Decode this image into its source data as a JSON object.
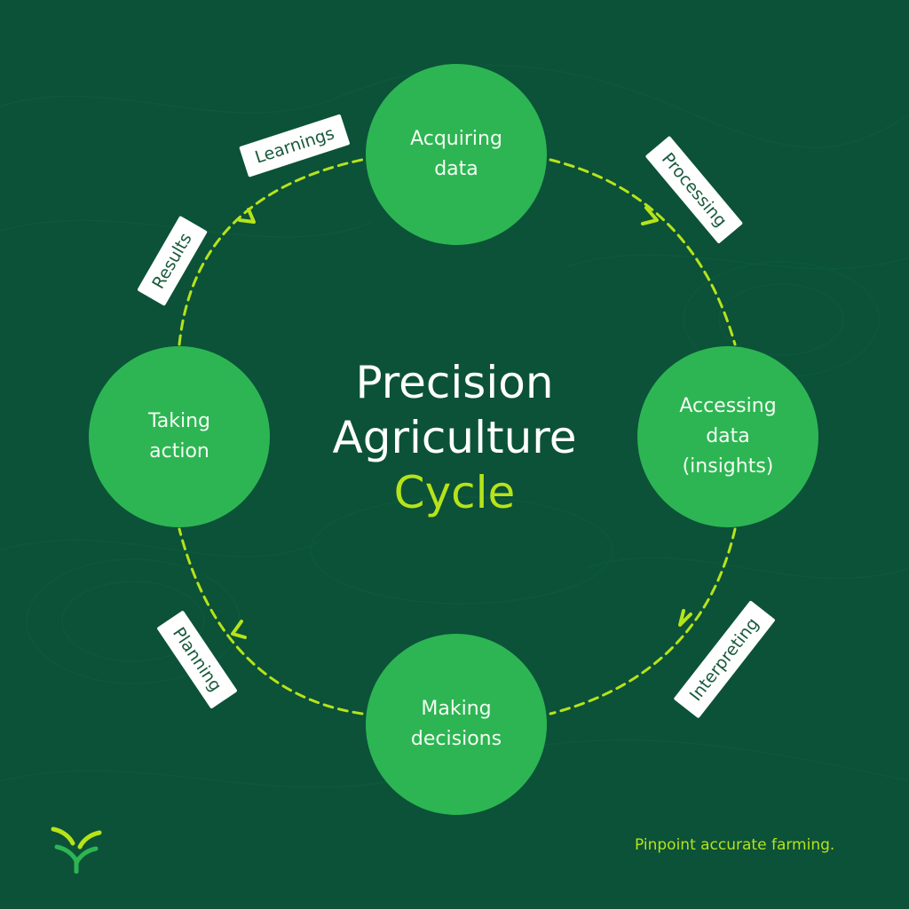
{
  "title": {
    "line1": "Precision",
    "line2": "Agriculture",
    "line3": "Cycle"
  },
  "nodes": {
    "acquiring": {
      "line1": "Acquiring",
      "line2": "data"
    },
    "accessing": {
      "line1": "Accessing",
      "line2": "data",
      "line3": "(insights)"
    },
    "making": {
      "line1": "Making",
      "line2": "decisions"
    },
    "taking": {
      "line1": "Taking",
      "line2": "action"
    }
  },
  "steps": {
    "processing": "Processing",
    "interpreting": "Interpreting",
    "planning": "Planning",
    "results": "Results",
    "learnings": "Learnings"
  },
  "tagline": "Pinpoint accurate farming.",
  "colors": {
    "background": "#0b5238",
    "node": "#2db553",
    "accent": "#b7e31a",
    "tag": "#ffffff"
  }
}
